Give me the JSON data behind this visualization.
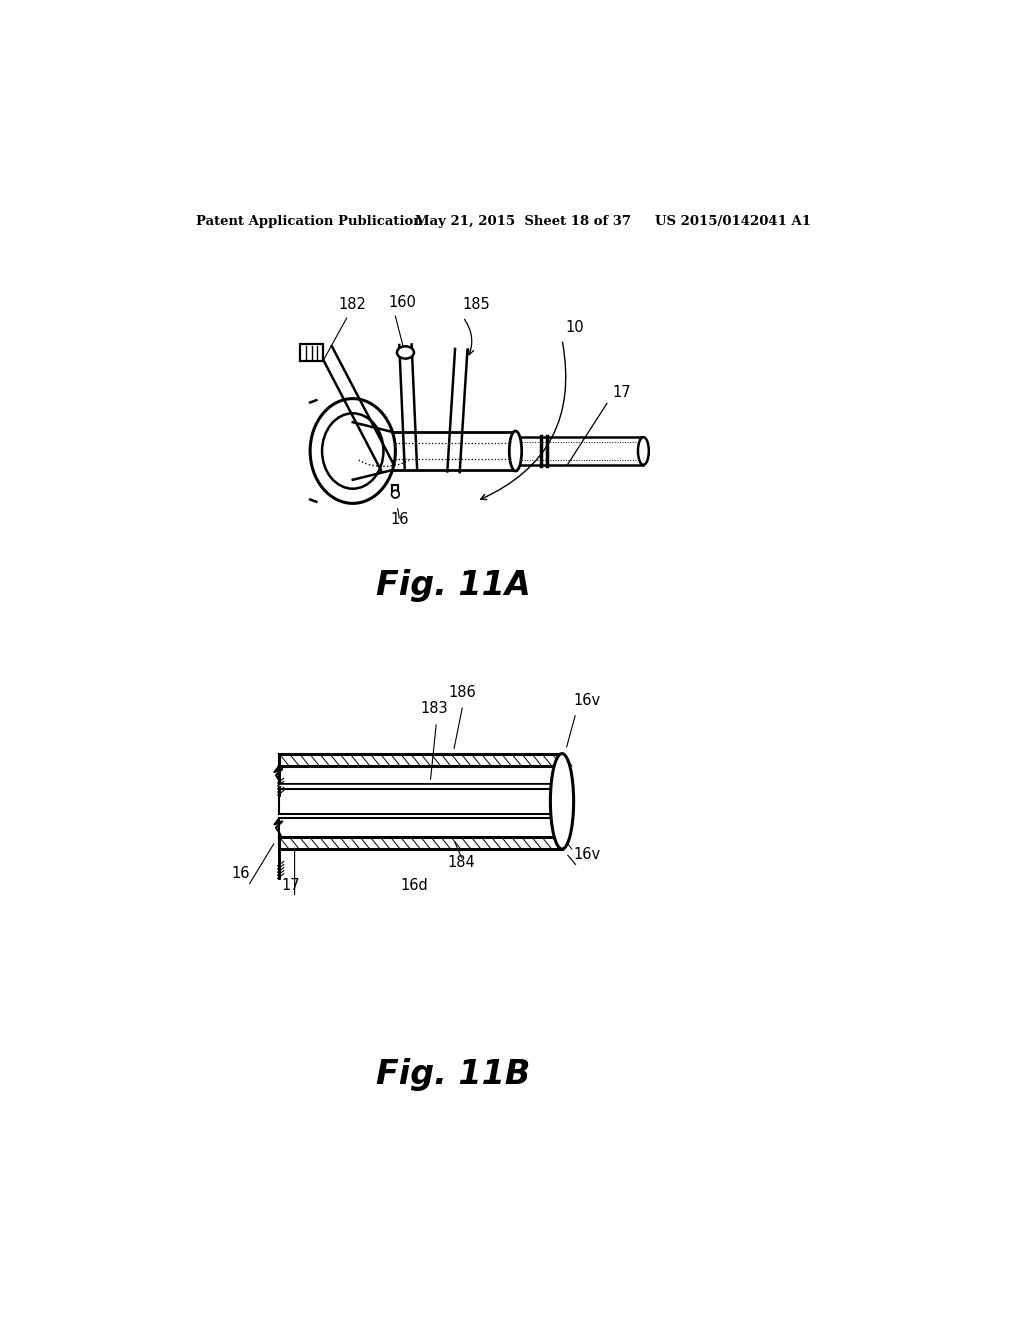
{
  "bg_color": "#ffffff",
  "header_text": "Patent Application Publication",
  "header_date": "May 21, 2015  Sheet 18 of 37",
  "header_patent": "US 2015/0142041 A1",
  "fig_a_label": "Fig. 11A",
  "fig_b_label": "Fig. 11B",
  "line_color": "#000000",
  "label_fontsize": 10.5
}
